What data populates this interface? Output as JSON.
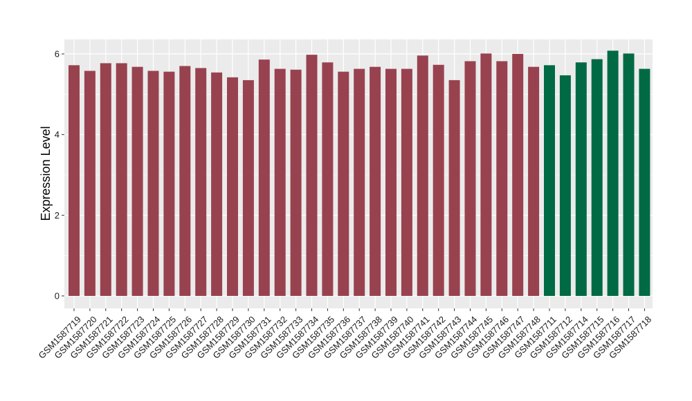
{
  "chart_data": {
    "type": "bar",
    "title": "",
    "xlabel": "",
    "ylabel": "Expression Level",
    "ylim": [
      0,
      6.2
    ],
    "yticks": [
      0,
      2,
      4,
      6
    ],
    "grid": true,
    "categories": [
      "GSM1587719",
      "GSM1587720",
      "GSM1587721",
      "GSM1587722",
      "GSM1587723",
      "GSM1587724",
      "GSM1587725",
      "GSM1587726",
      "GSM1587727",
      "GSM1587728",
      "GSM1587729",
      "GSM1587730",
      "GSM1587731",
      "GSM1587732",
      "GSM1587733",
      "GSM1587734",
      "GSM1587735",
      "GSM1587736",
      "GSM1587737",
      "GSM1587738",
      "GSM1587739",
      "GSM1587740",
      "GSM1587741",
      "GSM1587742",
      "GSM1587743",
      "GSM1587744",
      "GSM1587745",
      "GSM1587746",
      "GSM1587747",
      "GSM1587748",
      "GSM1587711",
      "GSM1587712",
      "GSM1587714",
      "GSM1587715",
      "GSM1587716",
      "GSM1587717",
      "GSM1587718"
    ],
    "values": [
      5.72,
      5.58,
      5.77,
      5.77,
      5.68,
      5.58,
      5.56,
      5.7,
      5.65,
      5.54,
      5.42,
      5.35,
      5.86,
      5.63,
      5.61,
      5.98,
      5.79,
      5.56,
      5.63,
      5.68,
      5.63,
      5.63,
      5.96,
      5.73,
      5.35,
      5.82,
      6.01,
      5.82,
      6.0,
      5.68,
      5.72,
      5.47,
      5.79,
      5.87,
      6.08,
      6.01,
      5.63
    ],
    "groups": [
      0,
      0,
      0,
      0,
      0,
      0,
      0,
      0,
      0,
      0,
      0,
      0,
      0,
      0,
      0,
      0,
      0,
      0,
      0,
      0,
      0,
      0,
      0,
      0,
      0,
      0,
      0,
      0,
      0,
      0,
      1,
      1,
      1,
      1,
      1,
      1,
      1
    ],
    "colors": [
      "#99424f",
      "#006a44"
    ],
    "panel_color": "#ebebeb",
    "grid_color": "#ffffff"
  }
}
